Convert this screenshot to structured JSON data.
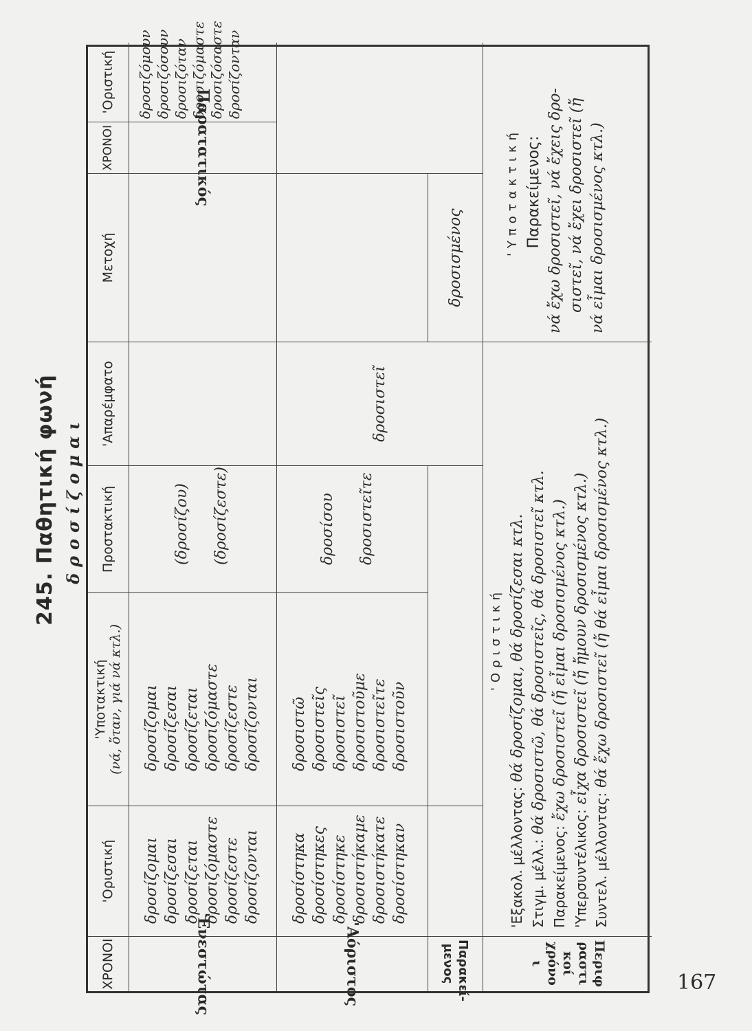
{
  "heading": {
    "title": "245.  Παθητική φωνή",
    "verb": "δροσίζομαι"
  },
  "headers": {
    "tenses": "ΧΡΟΝΟΙ",
    "indicative": "'Οριστική",
    "subjunctive": "'Υποτακτική",
    "subjunctive_note": "(νά, ὅταν, γιά νά κτλ.)",
    "imperative": "Προστακτική",
    "infinitive": "'Απαρέμφατο",
    "participle": "Μετοχή",
    "tenses2": "ΧΡΟΝΟΙ",
    "indicative2": "'Οριστική"
  },
  "present": {
    "label": "'Ενεστώτας",
    "indicative": [
      "δροσίζομαι",
      "δροσίζεσαι",
      "δροσίζεται",
      "δροσιζόμαστε",
      "δροσίζεστε",
      "δροσίζονται"
    ],
    "subjunctive": [
      "δροσίζομαι",
      "δροσίζεσαι",
      "δροσίζεται",
      "δροσιζόμαστε",
      "δροσίζεστε",
      "δροσίζονται"
    ],
    "imperative": [
      "(δροσίζου)",
      "(δροσίζεστε)"
    ]
  },
  "imperfect": {
    "label": "Παρατατικός",
    "indicative": [
      "δροσιζόμουν",
      "δροσιζόσουν",
      "δροσιζόταν",
      "δροσιζόμαστε",
      "δροσιζόσαστε",
      "δροσίζονταν"
    ]
  },
  "aorist": {
    "label": "'Αόριστος",
    "indicative": [
      "δροσίστηκα",
      "δροσίστηκες",
      "δροσίστηκε",
      "δροσιστήκαμε",
      "δροσιστήκατε",
      "δροσίστηκαν"
    ],
    "subjunctive": [
      "δροσιστῶ",
      "δροσιστεῖς",
      "δροσιστεῖ",
      "δροσιστοῦμε",
      "δροσιστεῖτε",
      "δροσιστοῦν"
    ],
    "imperative": [
      "δροσίσου",
      "δροσιστεῖτε"
    ],
    "infinitive": "δροσιστεῖ"
  },
  "perfect": {
    "label": "Παρακεί-μενος",
    "participle": "δροσισμένος"
  },
  "periphrastic": {
    "label": "Περιφραστικοί χρόνοι",
    "indicative_label": "'Οριστική",
    "indicative": [
      {
        "tense": "'Εξακολ. μέλλοντας:",
        "forms": "θά δροσίζομαι, θά δροσίζεσαι κτλ."
      },
      {
        "tense": "Στιγμ. μέλλ.:",
        "forms": "θά δροσιστῶ, θά δροσιστεῖς, θά δροσιστεῖ κτλ."
      },
      {
        "tense": "Παρακείμενος:",
        "forms": "ἔχω δροσιστεῖ (ἤ εἶμαι δροσισμένος κτλ.)"
      },
      {
        "tense": "'Υπερσυντέλικος:",
        "forms": "εἶχα δροσιστεῖ (ἤ ἤμουν δροσισμένος κτλ.)"
      },
      {
        "tense": "Συντελ. μέλλοντας:",
        "forms": "θά ἔχω δροσιστεῖ (ἤ θά εἶμαι δροσισμένος κτλ.)"
      }
    ],
    "subjunctive_label": "'Υποτακτική",
    "subjunctive_tense": "Παρακείμενος:",
    "subjunctive_forms": [
      "νά ἔχω δροσιστεῖ, νά ἔχεις δρο-",
      "σιστεῖ, νά ἔχει δροσιστεῖ (ἤ",
      "νά εἶμαι δροσισμένος κτλ.)"
    ]
  },
  "page_number": "167"
}
